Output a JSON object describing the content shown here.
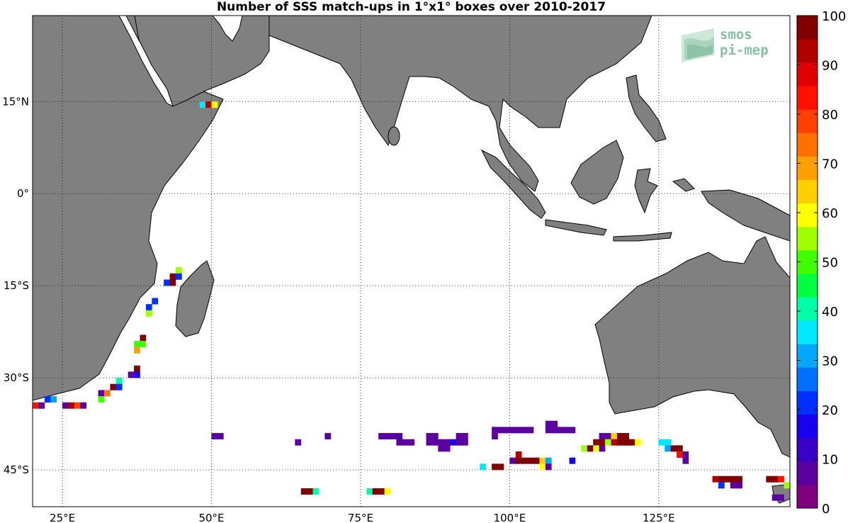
{
  "title": "Number of SSS match-ups in 1°x1° boxes over 2010-2017",
  "logo": {
    "line1": "smos",
    "line2": "pi-mep",
    "icon": "smos-wave-icon",
    "color": "#86c3a4"
  },
  "map": {
    "lon_range": [
      20,
      147
    ],
    "lat_range": [
      -51,
      29
    ],
    "land_color": "#808080",
    "ocean_color": "#ffffff",
    "grid": true,
    "lon_ticks": [
      {
        "lon": 25,
        "label": "25°E"
      },
      {
        "lon": 50,
        "label": "50°E"
      },
      {
        "lon": 75,
        "label": "75°E"
      },
      {
        "lon": 100,
        "label": "100°E"
      },
      {
        "lon": 125,
        "label": "125°E"
      }
    ],
    "lat_ticks": [
      {
        "lat": 15,
        "label": "15°N"
      },
      {
        "lat": 0,
        "label": "0°"
      },
      {
        "lat": -15,
        "label": "15°S"
      },
      {
        "lat": -30,
        "label": "30°S"
      },
      {
        "lat": -45,
        "label": "45°S"
      }
    ]
  },
  "colorbar": {
    "min": 0,
    "max": 100,
    "tick_labels": [
      "100",
      "90",
      "80",
      "70",
      "60",
      "50",
      "40",
      "30",
      "20",
      "10",
      "0"
    ],
    "colors": [
      "#7f007f",
      "#5a00a0",
      "#3a00c8",
      "#1a00f0",
      "#0030ff",
      "#0070ff",
      "#00a8ff",
      "#00e8ff",
      "#00ffa8",
      "#00ff40",
      "#40ff00",
      "#a0ff00",
      "#ffff00",
      "#ffd000",
      "#ffa000",
      "#ff7000",
      "#ff4000",
      "#ff1000",
      "#e00000",
      "#b00000",
      "#800000"
    ]
  },
  "chart_data": {
    "type": "heatmap",
    "title": "Number of SSS match-ups in 1°x1° boxes over 2010-2017",
    "colorbar_range": [
      0,
      100
    ],
    "cells": [
      {
        "lon": 48.5,
        "lat": 14.5,
        "value": 35
      },
      {
        "lon": 49.5,
        "lat": 14.5,
        "value": 95
      },
      {
        "lon": 50.5,
        "lat": 14.5,
        "value": 60
      },
      {
        "lon": 44.5,
        "lat": -12.5,
        "value": 55
      },
      {
        "lon": 43.5,
        "lat": -13.5,
        "value": 100
      },
      {
        "lon": 44.5,
        "lat": -13.5,
        "value": 20
      },
      {
        "lon": 42.5,
        "lat": -14.5,
        "value": 20
      },
      {
        "lon": 43.5,
        "lat": -14.5,
        "value": 100
      },
      {
        "lon": 40.5,
        "lat": -17.5,
        "value": 20
      },
      {
        "lon": 39.5,
        "lat": -18.5,
        "value": 20
      },
      {
        "lon": 39.5,
        "lat": -19.5,
        "value": 55
      },
      {
        "lon": 38.5,
        "lat": -23.5,
        "value": 100
      },
      {
        "lon": 37.5,
        "lat": -24.5,
        "value": 50
      },
      {
        "lon": 38.5,
        "lat": -24.5,
        "value": 50
      },
      {
        "lon": 37.5,
        "lat": -25.5,
        "value": 70
      },
      {
        "lon": 37.5,
        "lat": -28.5,
        "value": 100
      },
      {
        "lon": 36.5,
        "lat": -29.5,
        "value": 5
      },
      {
        "lon": 37.5,
        "lat": -29.5,
        "value": 15
      },
      {
        "lon": 34.5,
        "lat": -30.5,
        "value": 40
      },
      {
        "lon": 33.5,
        "lat": -31.5,
        "value": 100
      },
      {
        "lon": 34.5,
        "lat": -31.5,
        "value": 20
      },
      {
        "lon": 31.5,
        "lat": -32.5,
        "value": 5
      },
      {
        "lon": 32.5,
        "lat": -32.5,
        "value": 75
      },
      {
        "lon": 31.5,
        "lat": -33.5,
        "value": 50
      },
      {
        "lon": 20.5,
        "lat": -34.5,
        "value": 85
      },
      {
        "lon": 21.5,
        "lat": -34.5,
        "value": 5
      },
      {
        "lon": 22.5,
        "lat": -33.5,
        "value": 20
      },
      {
        "lon": 23.5,
        "lat": -33.5,
        "value": 30
      },
      {
        "lon": 25.5,
        "lat": -34.5,
        "value": 5
      },
      {
        "lon": 26.5,
        "lat": -34.5,
        "value": 95
      },
      {
        "lon": 27.5,
        "lat": -34.5,
        "value": 80
      },
      {
        "lon": 28.5,
        "lat": -34.5,
        "value": 5
      },
      {
        "lon": 50.5,
        "lat": -39.5,
        "value": 5
      },
      {
        "lon": 51.5,
        "lat": -39.5,
        "value": 5
      },
      {
        "lon": 64.5,
        "lat": -40.5,
        "value": 5
      },
      {
        "lon": 69.5,
        "lat": -39.5,
        "value": 5
      },
      {
        "lon": 78.5,
        "lat": -39.5,
        "value": 5
      },
      {
        "lon": 79.5,
        "lat": -39.5,
        "value": 5
      },
      {
        "lon": 80.5,
        "lat": -39.5,
        "value": 5
      },
      {
        "lon": 81.5,
        "lat": -39.5,
        "value": 5
      },
      {
        "lon": 81.5,
        "lat": -40.5,
        "value": 5
      },
      {
        "lon": 82.5,
        "lat": -40.5,
        "value": 5
      },
      {
        "lon": 83.5,
        "lat": -40.5,
        "value": 5
      },
      {
        "lon": 86.5,
        "lat": -39.5,
        "value": 5
      },
      {
        "lon": 87.5,
        "lat": -39.5,
        "value": 5
      },
      {
        "lon": 86.5,
        "lat": -40.5,
        "value": 5
      },
      {
        "lon": 87.5,
        "lat": -40.5,
        "value": 5
      },
      {
        "lon": 88.5,
        "lat": -40.5,
        "value": 5
      },
      {
        "lon": 89.5,
        "lat": -40.5,
        "value": 5
      },
      {
        "lon": 90.5,
        "lat": -40.5,
        "value": 15
      },
      {
        "lon": 91.5,
        "lat": -40.5,
        "value": 5
      },
      {
        "lon": 91.5,
        "lat": -39.5,
        "value": 5
      },
      {
        "lon": 92.5,
        "lat": -39.5,
        "value": 5
      },
      {
        "lon": 92.5,
        "lat": -40.5,
        "value": 5
      },
      {
        "lon": 88.5,
        "lat": -41.5,
        "value": 5
      },
      {
        "lon": 89.5,
        "lat": -41.5,
        "value": 5
      },
      {
        "lon": 97.5,
        "lat": -38.5,
        "value": 5
      },
      {
        "lon": 98.5,
        "lat": -38.5,
        "value": 5
      },
      {
        "lon": 99.5,
        "lat": -38.5,
        "value": 5
      },
      {
        "lon": 100.5,
        "lat": -38.5,
        "value": 5
      },
      {
        "lon": 101.5,
        "lat": -38.5,
        "value": 5
      },
      {
        "lon": 102.5,
        "lat": -38.5,
        "value": 5
      },
      {
        "lon": 103.5,
        "lat": -38.5,
        "value": 5
      },
      {
        "lon": 97.5,
        "lat": -39.5,
        "value": 5
      },
      {
        "lon": 106.5,
        "lat": -37.5,
        "value": 5
      },
      {
        "lon": 107.5,
        "lat": -37.5,
        "value": 5
      },
      {
        "lon": 106.5,
        "lat": -38.5,
        "value": 5
      },
      {
        "lon": 107.5,
        "lat": -38.5,
        "value": 5
      },
      {
        "lon": 108.5,
        "lat": -38.5,
        "value": 5
      },
      {
        "lon": 109.5,
        "lat": -38.5,
        "value": 5
      },
      {
        "lon": 110.5,
        "lat": -38.5,
        "value": 5
      },
      {
        "lon": 101.5,
        "lat": -42.5,
        "value": 95
      },
      {
        "lon": 100.5,
        "lat": -43.5,
        "value": 5
      },
      {
        "lon": 101.5,
        "lat": -43.5,
        "value": 100
      },
      {
        "lon": 102.5,
        "lat": -43.5,
        "value": 100
      },
      {
        "lon": 103.5,
        "lat": -43.5,
        "value": 100
      },
      {
        "lon": 104.5,
        "lat": -43.5,
        "value": 100
      },
      {
        "lon": 105.5,
        "lat": -43.5,
        "value": 65
      },
      {
        "lon": 106.5,
        "lat": -43.5,
        "value": 30
      },
      {
        "lon": 105.5,
        "lat": -44.5,
        "value": 60
      },
      {
        "lon": 106.5,
        "lat": -44.5,
        "value": 5
      },
      {
        "lon": 110.5,
        "lat": -43.5,
        "value": 15
      },
      {
        "lon": 95.5,
        "lat": -44.5,
        "value": 35
      },
      {
        "lon": 97.5,
        "lat": -44.5,
        "value": 100
      },
      {
        "lon": 98.5,
        "lat": -44.5,
        "value": 100
      },
      {
        "lon": 115.5,
        "lat": -39.5,
        "value": 5
      },
      {
        "lon": 116.5,
        "lat": -39.5,
        "value": 5
      },
      {
        "lon": 114.5,
        "lat": -40.5,
        "value": 100
      },
      {
        "lon": 115.5,
        "lat": -40.5,
        "value": 100
      },
      {
        "lon": 112.5,
        "lat": -41.5,
        "value": 55
      },
      {
        "lon": 113.5,
        "lat": -41.5,
        "value": 100
      },
      {
        "lon": 114.5,
        "lat": -41.5,
        "value": 60
      },
      {
        "lon": 115.5,
        "lat": -41.5,
        "value": 5
      },
      {
        "lon": 116.5,
        "lat": -40.5,
        "value": 55
      },
      {
        "lon": 117.5,
        "lat": -39.5,
        "value": 65
      },
      {
        "lon": 118.5,
        "lat": -39.5,
        "value": 100
      },
      {
        "lon": 119.5,
        "lat": -39.5,
        "value": 100
      },
      {
        "lon": 117.5,
        "lat": -40.5,
        "value": 95
      },
      {
        "lon": 118.5,
        "lat": -40.5,
        "value": 100
      },
      {
        "lon": 119.5,
        "lat": -40.5,
        "value": 100
      },
      {
        "lon": 120.5,
        "lat": -40.5,
        "value": 100
      },
      {
        "lon": 121.5,
        "lat": -40.5,
        "value": 60
      },
      {
        "lon": 125.5,
        "lat": -40.5,
        "value": 35
      },
      {
        "lon": 126.5,
        "lat": -40.5,
        "value": 35
      },
      {
        "lon": 126.5,
        "lat": -41.5,
        "value": 30
      },
      {
        "lon": 127.5,
        "lat": -41.5,
        "value": 100
      },
      {
        "lon": 128.5,
        "lat": -41.5,
        "value": 100
      },
      {
        "lon": 128.5,
        "lat": -42.5,
        "value": 85
      },
      {
        "lon": 129.5,
        "lat": -42.5,
        "value": 5
      },
      {
        "lon": 129.5,
        "lat": -43.5,
        "value": 5
      },
      {
        "lon": 134.5,
        "lat": -46.5,
        "value": 95
      },
      {
        "lon": 135.5,
        "lat": -46.5,
        "value": 100
      },
      {
        "lon": 136.5,
        "lat": -46.5,
        "value": 100
      },
      {
        "lon": 137.5,
        "lat": -46.5,
        "value": 100
      },
      {
        "lon": 138.5,
        "lat": -46.5,
        "value": 100
      },
      {
        "lon": 135.5,
        "lat": -47.5,
        "value": 20
      },
      {
        "lon": 137.5,
        "lat": -47.5,
        "value": 5
      },
      {
        "lon": 138.5,
        "lat": -47.5,
        "value": 5
      },
      {
        "lon": 143.5,
        "lat": -46.5,
        "value": 100
      },
      {
        "lon": 144.5,
        "lat": -46.5,
        "value": 100
      },
      {
        "lon": 145.5,
        "lat": -46.5,
        "value": 85
      },
      {
        "lon": 146.5,
        "lat": -47.5,
        "value": 55
      },
      {
        "lon": 144.5,
        "lat": -49.5,
        "value": 5
      },
      {
        "lon": 145.5,
        "lat": -49.5,
        "value": 5
      },
      {
        "lon": 65.5,
        "lat": -48.5,
        "value": 100
      },
      {
        "lon": 66.5,
        "lat": -48.5,
        "value": 100
      },
      {
        "lon": 67.5,
        "lat": -48.5,
        "value": 40
      },
      {
        "lon": 76.5,
        "lat": -48.5,
        "value": 40
      },
      {
        "lon": 77.5,
        "lat": -48.5,
        "value": 100
      },
      {
        "lon": 78.5,
        "lat": -48.5,
        "value": 100
      },
      {
        "lon": 79.5,
        "lat": -48.5,
        "value": 60
      }
    ]
  }
}
